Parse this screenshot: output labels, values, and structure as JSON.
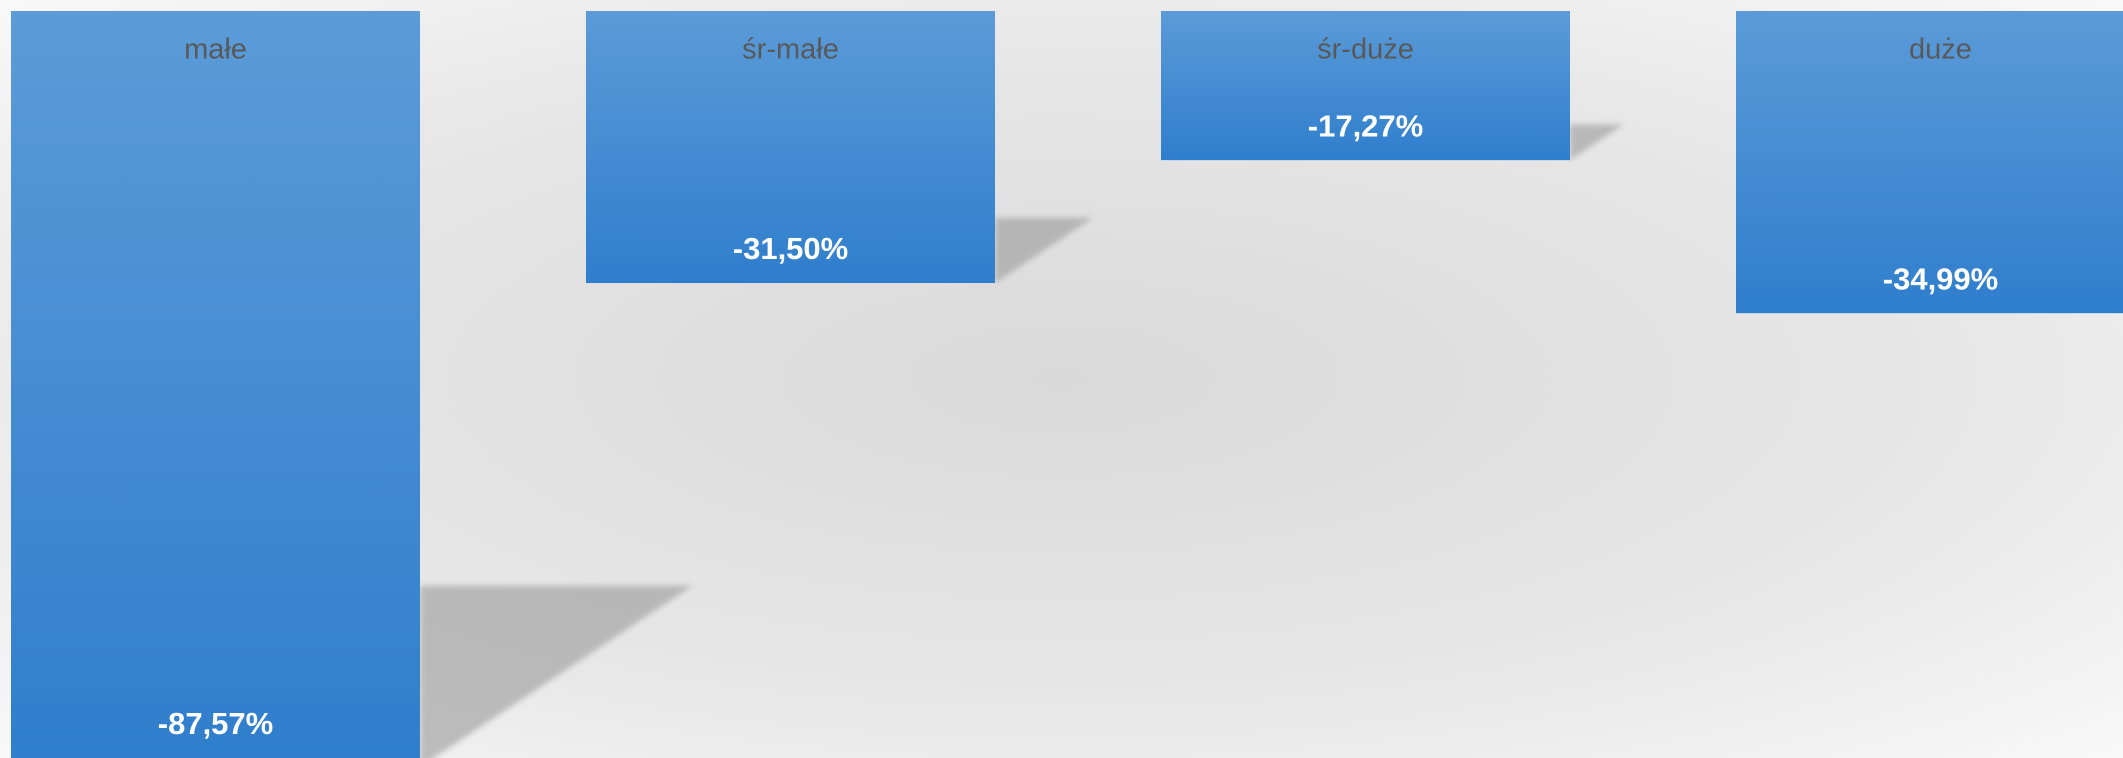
{
  "chart_data": {
    "type": "bar",
    "categories": [
      "małe",
      "śr-małe",
      "śr-duże",
      "duże"
    ],
    "values": [
      -87.57,
      -31.5,
      -17.27,
      -34.99
    ],
    "value_labels": [
      "-87,57%",
      "-31,50%",
      "-17,27%",
      "-34,99%"
    ],
    "color": "#3a85cf",
    "ylim": [
      -86.5,
      0
    ]
  }
}
